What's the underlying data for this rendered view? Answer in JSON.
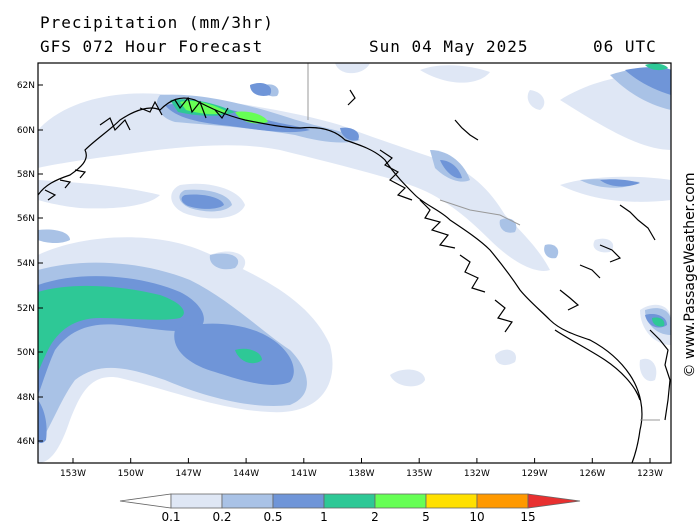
{
  "header": {
    "title": "Precipitation (mm/3hr)",
    "subtitle": "GFS 072 Hour Forecast",
    "date": "Sun 04 May 2025",
    "time": "06 UTC"
  },
  "credit": "© www.PassageWeather.com",
  "axes": {
    "lat_labels": [
      "62N",
      "60N",
      "58N",
      "56N",
      "54N",
      "52N",
      "50N",
      "48N",
      "46N"
    ],
    "lon_labels": [
      "153W",
      "150W",
      "147W",
      "144W",
      "141W",
      "138W",
      "135W",
      "132W",
      "129W",
      "126W",
      "123W"
    ]
  },
  "legend": {
    "values": [
      "0.1",
      "0.2",
      "0.5",
      "1",
      "2",
      "5",
      "10",
      "15"
    ],
    "colors": [
      "#ffffff",
      "#dfe7f5",
      "#a9c2e6",
      "#6f95d8",
      "#2ec896",
      "#66ff55",
      "#ffe000",
      "#ff9900",
      "#e83030"
    ]
  },
  "palette": {
    "light": "#dfe7f5",
    "pale": "#a9c2e6",
    "mid": "#6f95d8",
    "teal": "#2ec896",
    "green": "#66ff55"
  }
}
